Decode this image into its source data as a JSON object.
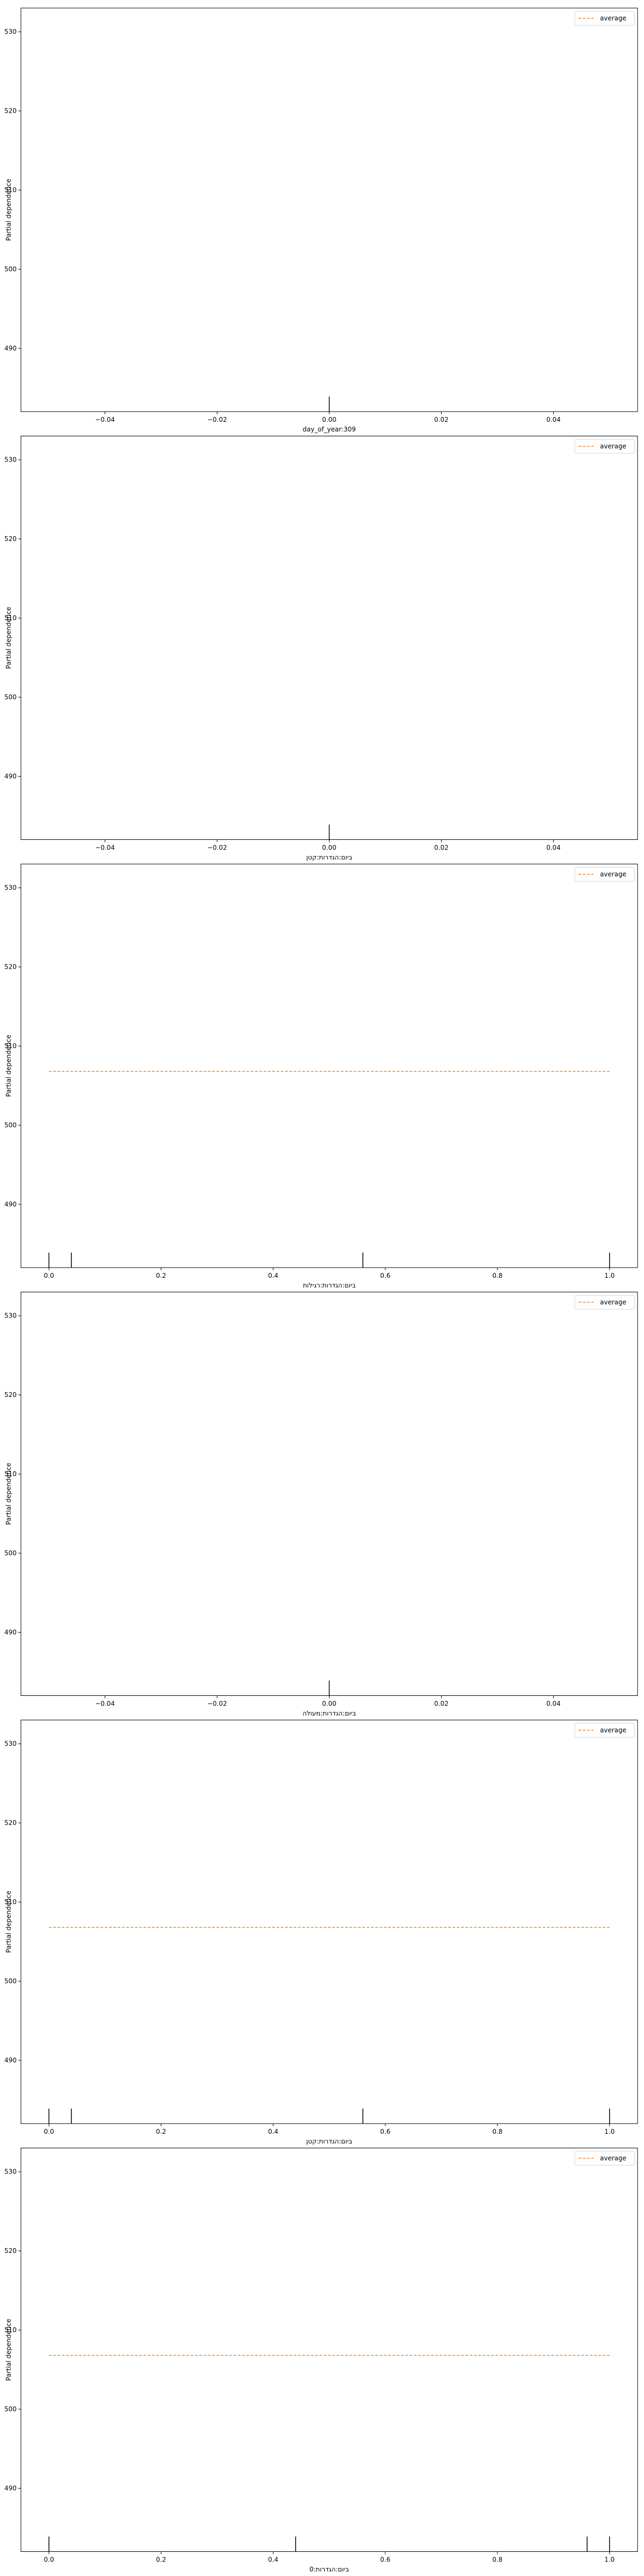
{
  "chart_data": [
    {
      "type": "line",
      "xlabel": "day_of_year:309",
      "ylabel": "Partial dependence",
      "ylim": [
        482,
        533
      ],
      "yticks": [
        490,
        500,
        510,
        520,
        530
      ],
      "xlim": [
        -0.055,
        0.055
      ],
      "xticks": [
        -0.04,
        -0.02,
        0.0,
        0.02,
        0.04
      ],
      "xtick_labels": [
        "−0.04",
        "−0.02",
        "0.00",
        "0.02",
        "0.04"
      ],
      "legend": {
        "placement": "top-right",
        "entries": [
          "average"
        ]
      },
      "series": [
        {
          "name": "average",
          "color": "#ff7f0e",
          "dashed": true,
          "x": [],
          "y": []
        }
      ],
      "deciles": [
        0.0
      ]
    },
    {
      "type": "line",
      "xlabel": "ביום:הגדרות:קטן",
      "ylabel": "Partial dependence",
      "ylim": [
        482,
        533
      ],
      "yticks": [
        490,
        500,
        510,
        520,
        530
      ],
      "xlim": [
        -0.055,
        0.055
      ],
      "xticks": [
        -0.04,
        -0.02,
        0.0,
        0.02,
        0.04
      ],
      "xtick_labels": [
        "−0.04",
        "−0.02",
        "0.00",
        "0.02",
        "0.04"
      ],
      "legend": {
        "placement": "top-right",
        "entries": [
          "average"
        ]
      },
      "series": [
        {
          "name": "average",
          "color": "#ff7f0e",
          "dashed": true,
          "x": [],
          "y": []
        }
      ],
      "deciles": [
        0.0
      ]
    },
    {
      "type": "line",
      "xlabel": "ביום:הגדרות:רגילות",
      "ylabel": "Partial dependence",
      "ylim": [
        482,
        533
      ],
      "yticks": [
        490,
        500,
        510,
        520,
        530
      ],
      "xlim": [
        -0.05,
        1.05
      ],
      "xticks": [
        0.0,
        0.2,
        0.4,
        0.6,
        0.8,
        1.0
      ],
      "xtick_labels": [
        "0.0",
        "0.2",
        "0.4",
        "0.6",
        "0.8",
        "1.0"
      ],
      "legend": {
        "placement": "top-right",
        "entries": [
          "average"
        ]
      },
      "series": [
        {
          "name": "average",
          "color": "#ff7f0e",
          "dashed": true,
          "x": [
            0.0,
            1.0
          ],
          "y": [
            506.8,
            506.8
          ]
        }
      ],
      "deciles": [
        0.0,
        0.04,
        0.56,
        1.0
      ]
    },
    {
      "type": "line",
      "xlabel": "ביום:הגדרות:מעולה",
      "ylabel": "Partial dependence",
      "ylim": [
        482,
        533
      ],
      "yticks": [
        490,
        500,
        510,
        520,
        530
      ],
      "xlim": [
        -0.055,
        0.055
      ],
      "xticks": [
        -0.04,
        -0.02,
        0.0,
        0.02,
        0.04
      ],
      "xtick_labels": [
        "−0.04",
        "−0.02",
        "0.00",
        "0.02",
        "0.04"
      ],
      "legend": {
        "placement": "top-right",
        "entries": [
          "average"
        ]
      },
      "series": [
        {
          "name": "average",
          "color": "#ff7f0e",
          "dashed": true,
          "x": [],
          "y": []
        }
      ],
      "deciles": [
        0.0
      ]
    },
    {
      "type": "line",
      "xlabel": "ביום:הגדרות:קטן",
      "ylabel": "Partial dependence",
      "ylim": [
        482,
        533
      ],
      "yticks": [
        490,
        500,
        510,
        520,
        530
      ],
      "xlim": [
        -0.05,
        1.05
      ],
      "xticks": [
        0.0,
        0.2,
        0.4,
        0.6,
        0.8,
        1.0
      ],
      "xtick_labels": [
        "0.0",
        "0.2",
        "0.4",
        "0.6",
        "0.8",
        "1.0"
      ],
      "legend": {
        "placement": "top-right",
        "entries": [
          "average"
        ]
      },
      "series": [
        {
          "name": "average",
          "color": "#ff7f0e",
          "dashed": true,
          "x": [
            0.0,
            1.0
          ],
          "y": [
            506.8,
            506.8
          ]
        }
      ],
      "deciles": [
        0.0,
        0.04,
        0.56,
        1.0
      ]
    },
    {
      "type": "line",
      "xlabel": "ביום:הגדרות:0",
      "ylabel": "Partial dependence",
      "ylim": [
        482,
        533
      ],
      "yticks": [
        490,
        500,
        510,
        520,
        530
      ],
      "xlim": [
        -0.05,
        1.05
      ],
      "xticks": [
        0.0,
        0.2,
        0.4,
        0.6,
        0.8,
        1.0
      ],
      "xtick_labels": [
        "0.0",
        "0.2",
        "0.4",
        "0.6",
        "0.8",
        "1.0"
      ],
      "legend": {
        "placement": "top-right",
        "entries": [
          "average"
        ]
      },
      "series": [
        {
          "name": "average",
          "color": "#ff7f0e",
          "dashed": true,
          "x": [
            0.0,
            1.0
          ],
          "y": [
            506.8,
            506.8
          ]
        }
      ],
      "deciles": [
        0.0,
        0.44,
        0.96,
        1.0
      ]
    }
  ]
}
